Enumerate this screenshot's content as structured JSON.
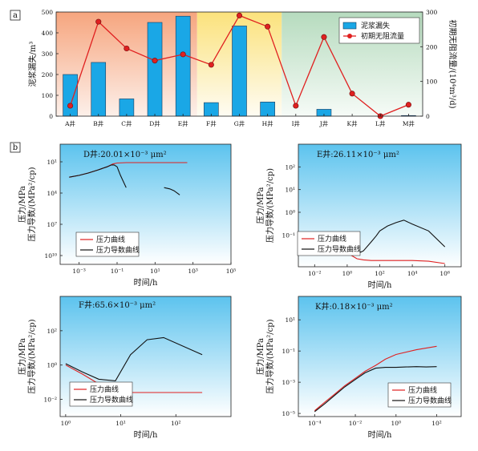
{
  "chart_data": [
    {
      "panel_label": "a",
      "type": "bar",
      "categories": [
        "A井",
        "B井",
        "C井",
        "D井",
        "E井",
        "F井",
        "G井",
        "H井",
        "I井",
        "J井",
        "K井",
        "L井",
        "M井"
      ],
      "series": [
        {
          "name": "泥浆漏失",
          "type": "bar",
          "axis": "left",
          "color": "#1aa7e6",
          "values": [
            200,
            258,
            83,
            450,
            480,
            65,
            433,
            68,
            0,
            33,
            0,
            0,
            3
          ]
        },
        {
          "name": "初期无阻流量",
          "type": "line",
          "axis": "right",
          "color": "#e02020",
          "values": [
            30,
            272,
            195,
            160,
            178,
            148,
            290,
            258,
            30,
            228,
            65,
            0,
            33
          ]
        }
      ],
      "ylabel_left": "泥浆漏失/m³",
      "ylabel_right": "初期无阻流量/(10⁴m³/d)",
      "ylim_left": [
        0,
        500
      ],
      "yticks_left": [
        "0",
        "100",
        "200",
        "300",
        "400",
        "500"
      ],
      "ylim_right": [
        0,
        300
      ],
      "yticks_right": [
        "0",
        "100",
        "200",
        "300"
      ],
      "legend_position": "top-right",
      "background_zones": [
        "orange",
        "yellow",
        "green"
      ]
    },
    {
      "panel_label": "b",
      "title": "D井:20.01×10⁻³ μm²",
      "type": "line",
      "xscale": "log",
      "yscale": "log",
      "xlabel": "时间/h",
      "ylabel": [
        "压力/MPa",
        "压力导数/(MPa²/cp)"
      ],
      "xticks": [
        "10⁻³",
        "10⁻¹",
        "10¹",
        "10³",
        "10⁵"
      ],
      "yticks": [
        "10¹",
        "10⁴",
        "10⁷",
        "10¹⁰"
      ],
      "legend": [
        "压力曲线",
        "压力导数曲线"
      ],
      "series": [
        {
          "name": "压力曲线",
          "color": "#e02020",
          "x": [
            0.0003,
            0.001,
            0.003,
            0.01,
            0.03,
            0.06,
            0.1,
            0.3,
            1,
            10,
            100,
            500
          ],
          "y": [
            30,
            20,
            12,
            6,
            3,
            1.6,
            1.3,
            1.2,
            1.2,
            1.2,
            1.2,
            1.2
          ]
        },
        {
          "name": "压力导数曲线",
          "color": "#111111",
          "x": [
            0.0003,
            0.001,
            0.003,
            0.01,
            0.03,
            0.05,
            0.07,
            0.1,
            0.15,
            0.3
          ],
          "y": [
            30,
            20,
            12,
            6,
            3,
            2,
            2,
            3,
            20,
            300
          ]
        },
        {
          "name": "压力导数曲线",
          "color": "#111111",
          "x": [
            30,
            60,
            100,
            200
          ],
          "y": [
            300,
            400,
            600,
            1500
          ]
        }
      ]
    },
    {
      "title": "E井:26.11×10⁻³ μm²",
      "type": "line",
      "xscale": "log",
      "yscale": "log",
      "xlabel": "时间/h",
      "ylabel": [
        "压力/MPa",
        "压力导数/(MPa²/cp)"
      ],
      "xticks": [
        "10⁻²",
        "10⁰",
        "10²",
        "10⁴",
        "10⁶"
      ],
      "yticks": [
        "10⁻¹",
        "10⁰",
        "10¹",
        "10²"
      ],
      "legend": [
        "压力曲线",
        "压力导数曲线"
      ],
      "series": [
        {
          "name": "压力曲线",
          "color": "#e02020",
          "x": [
            1,
            2,
            4,
            10,
            30,
            100,
            1000,
            10000,
            100000,
            1000000
          ],
          "y": [
            0.016,
            0.012,
            0.009,
            0.008,
            0.0075,
            0.0075,
            0.0075,
            0.0075,
            0.007,
            0.0055
          ]
        },
        {
          "name": "压力导数曲线",
          "color": "#111111",
          "x": [
            1,
            3,
            10,
            30,
            60,
            100,
            300,
            1000,
            3000,
            10000,
            100000,
            1000000
          ],
          "y": [
            0.014,
            0.013,
            0.02,
            0.05,
            0.09,
            0.15,
            0.25,
            0.35,
            0.45,
            0.3,
            0.15,
            0.03
          ]
        }
      ]
    },
    {
      "title": "F井:65.6×10⁻³ μm²",
      "type": "line",
      "xscale": "log",
      "yscale": "log",
      "xlabel": "时间/h",
      "ylabel": [
        "压力/MPa",
        "压力导数/(MPa²/cp)"
      ],
      "xticks": [
        "10⁰",
        "10¹",
        "10²"
      ],
      "yticks": [
        "10⁻²",
        "10⁰",
        "10²"
      ],
      "legend": [
        "压力曲线",
        "压力导数曲线"
      ],
      "series": [
        {
          "name": "压力曲线",
          "color": "#e02020",
          "x": [
            1,
            2,
            4,
            8,
            15,
            30,
            60,
            300
          ],
          "y": [
            1.0,
            0.3,
            0.08,
            0.03,
            0.025,
            0.025,
            0.025,
            0.025
          ]
        },
        {
          "name": "压力导数曲线",
          "color": "#111111",
          "x": [
            1,
            2,
            4,
            8,
            15,
            30,
            60,
            300
          ],
          "y": [
            1.2,
            0.4,
            0.15,
            0.12,
            4,
            30,
            40,
            4
          ]
        }
      ]
    },
    {
      "title": "K井:0.18×10⁻³ μm²",
      "type": "line",
      "xscale": "log",
      "yscale": "log",
      "xlabel": "时间/h",
      "ylabel": [
        "压力/MPa",
        "压力导数/(MPa²/cp)"
      ],
      "xticks": [
        "10⁻⁴",
        "10⁻²",
        "10⁰",
        "10²"
      ],
      "yticks": [
        "10⁻⁵",
        "10⁻³",
        "10⁻¹",
        "10¹"
      ],
      "legend": [
        "压力曲线",
        "压力导数曲线"
      ],
      "series": [
        {
          "name": "压力曲线",
          "color": "#e02020",
          "x": [
            0.0001,
            0.0003,
            0.001,
            0.003,
            0.01,
            0.03,
            0.1,
            0.3,
            1,
            10,
            100
          ],
          "y": [
            1.5e-05,
            5e-05,
            0.00018,
            0.0006,
            0.0018,
            0.005,
            0.012,
            0.03,
            0.06,
            0.12,
            0.2
          ]
        },
        {
          "name": "压力导数曲线",
          "color": "#111111",
          "x": [
            0.0001,
            0.0003,
            0.001,
            0.003,
            0.01,
            0.03,
            0.1,
            0.3,
            1,
            3,
            10,
            30,
            100
          ],
          "y": [
            1.3e-05,
            4e-05,
            0.00015,
            0.0005,
            0.0015,
            0.004,
            0.008,
            0.009,
            0.009,
            0.0095,
            0.01,
            0.0095,
            0.01
          ]
        }
      ]
    }
  ]
}
